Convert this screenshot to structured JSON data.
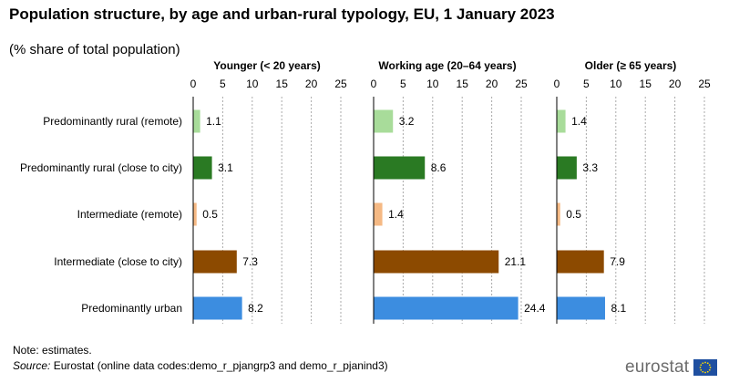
{
  "header": {
    "title": "Population structure, by age and urban-rural typology, EU, 1 January 2023",
    "subtitle": "(% share of total population)"
  },
  "footer": {
    "note": "Note: estimates.",
    "source_label": "Source:",
    "source_text": " Eurostat (online data codes:demo_r_pjangrp3 and demo_r_pjanind3)",
    "logo_text": "eurostat"
  },
  "colors": {
    "rural_remote": "#a8dc9a",
    "rural_close": "#2a7a23",
    "intermediate_remote": "#f5b984",
    "intermediate_close": "#8c4a00",
    "urban": "#3c8de0",
    "grid": "#aaaaaa",
    "logo_flag": "#1f4fa0",
    "logo_stars": "#ffdd00"
  },
  "chart_data": {
    "type": "bar",
    "orientation": "horizontal",
    "categories": [
      "Predominantly rural (remote)",
      "Predominantly rural (close to city)",
      "Intermediate (remote)",
      "Intermediate (close to city)",
      "Predominantly urban"
    ],
    "category_color_keys": [
      "rural_remote",
      "rural_close",
      "intermediate_remote",
      "intermediate_close",
      "urban"
    ],
    "xlim": [
      0,
      25
    ],
    "xticks": [
      0,
      5,
      10,
      15,
      20,
      25
    ],
    "grid": true,
    "panels": [
      {
        "title": "Younger (< 20 years)",
        "values": [
          1.1,
          3.1,
          0.5,
          7.3,
          8.2
        ]
      },
      {
        "title": "Working age (20–64 years)",
        "values": [
          3.2,
          8.6,
          1.4,
          21.1,
          24.4
        ]
      },
      {
        "title": "Older (≥ 65 years)",
        "values": [
          1.4,
          3.3,
          0.5,
          7.9,
          8.1
        ]
      }
    ]
  }
}
